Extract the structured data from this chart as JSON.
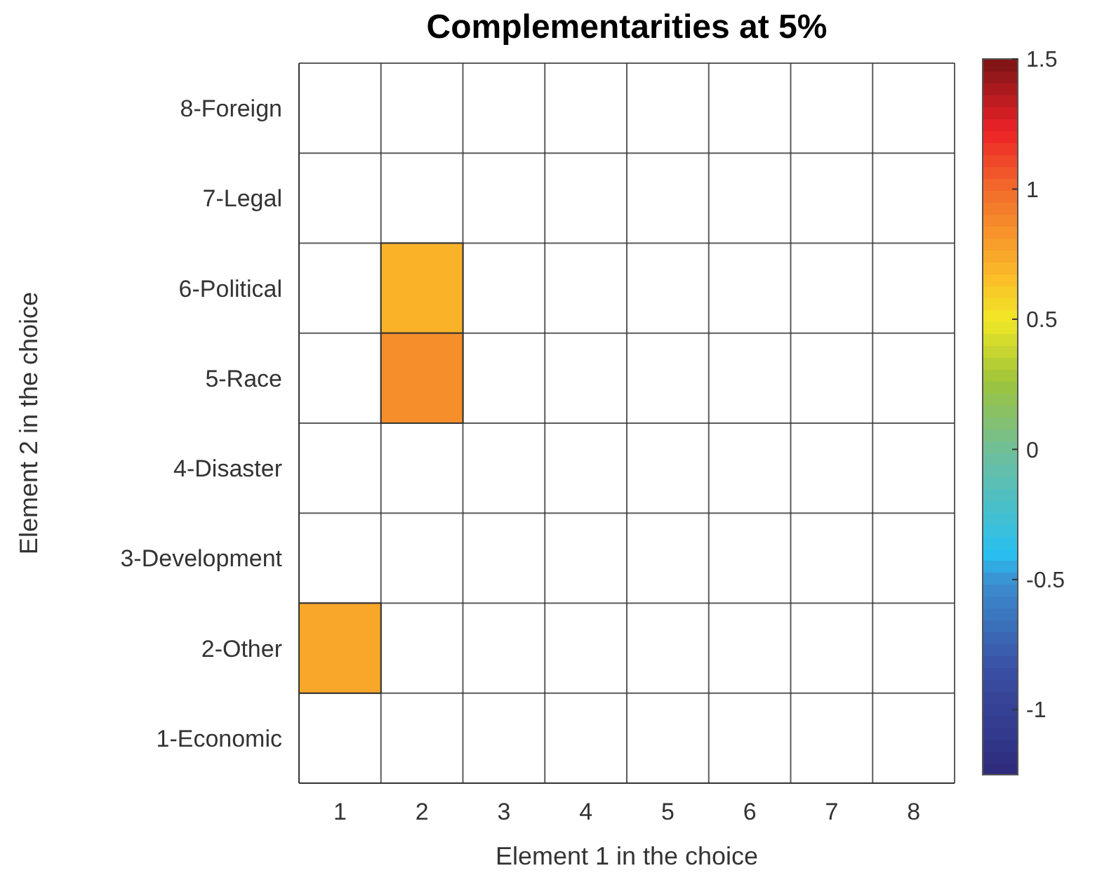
{
  "chart_data": {
    "type": "heatmap",
    "title": "Complementarities at 5%",
    "xlabel": "Element 1 in the choice",
    "ylabel": "Element 2 in the choice",
    "categories": [
      "1",
      "2",
      "3",
      "4",
      "5",
      "6",
      "7",
      "8"
    ],
    "y_categories": [
      "8-Foreign",
      "7-Legal",
      "6-Political",
      "5-Race",
      "4-Disaster",
      "3-Development",
      "2-Other",
      "1-Economic"
    ],
    "cells": [
      [
        null,
        null,
        null,
        null,
        null,
        null,
        null,
        null
      ],
      [
        null,
        null,
        null,
        null,
        null,
        null,
        null,
        null
      ],
      [
        null,
        0.7,
        null,
        null,
        null,
        null,
        null,
        null
      ],
      [
        null,
        0.85,
        null,
        null,
        null,
        null,
        null,
        null
      ],
      [
        null,
        null,
        null,
        null,
        null,
        null,
        null,
        null
      ],
      [
        null,
        null,
        null,
        null,
        null,
        null,
        null,
        null
      ],
      [
        0.75,
        null,
        null,
        null,
        null,
        null,
        null,
        null
      ],
      [
        null,
        null,
        null,
        null,
        null,
        null,
        null,
        null
      ]
    ],
    "clim": [
      -1.25,
      1.5
    ],
    "cticks": [
      -1,
      -0.5,
      0,
      0.5,
      1,
      1.5
    ],
    "grid": true
  }
}
